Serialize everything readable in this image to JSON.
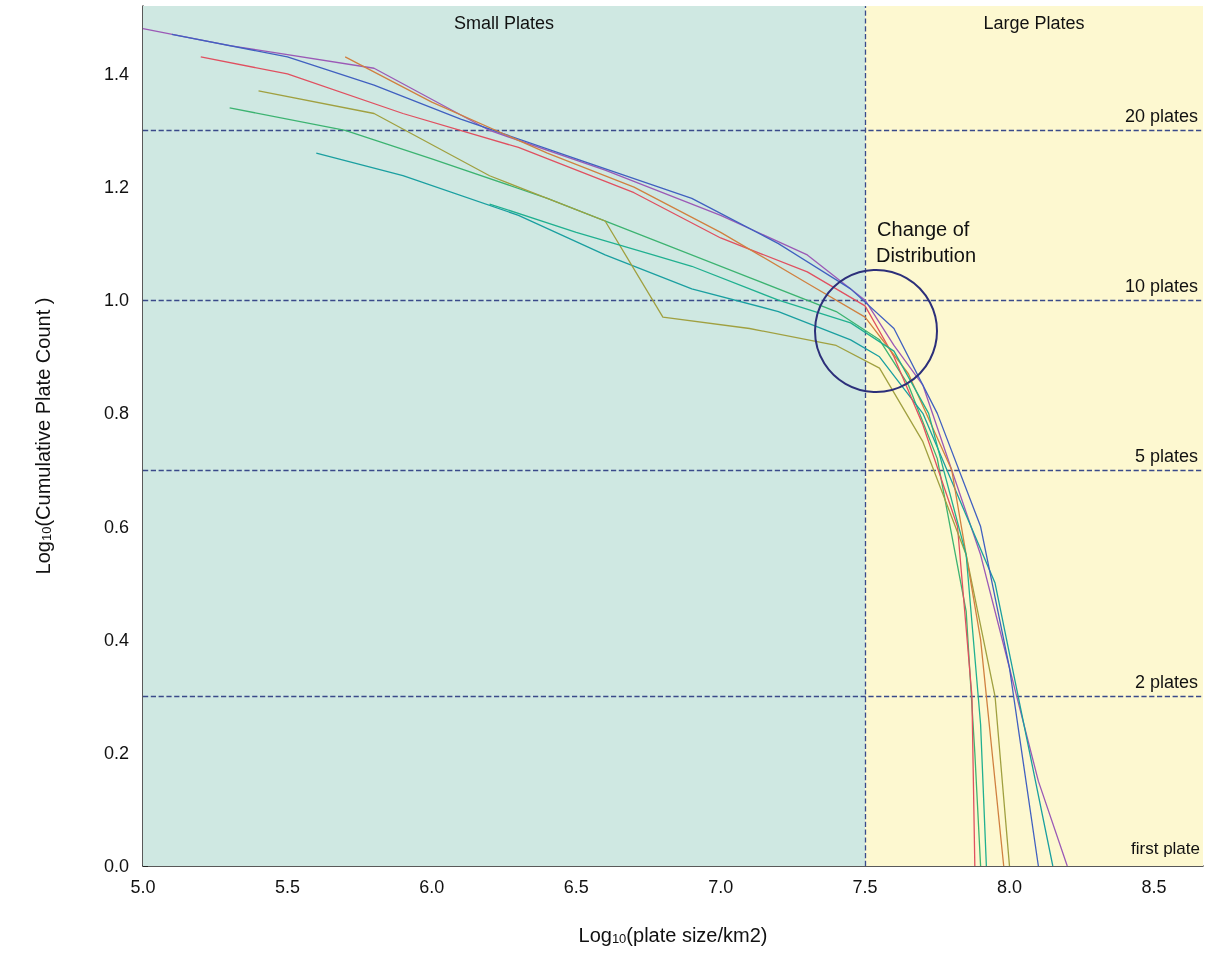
{
  "chart_data": {
    "type": "line",
    "xlabel": "Log$_{10}$(plate size/km2)",
    "ylabel": "Log$_{10}$(Cumulative Plate Count )",
    "xlim": [
      5,
      8.67
    ],
    "ylim": [
      0,
      1.52
    ],
    "xticks": [
      {
        "value": 5,
        "label": "5.0"
      },
      {
        "value": 5.5,
        "label": "5.5"
      },
      {
        "value": 6,
        "label": "6.0"
      },
      {
        "value": 6.5,
        "label": "6.5"
      },
      {
        "value": 7,
        "label": "7.0"
      },
      {
        "value": 7.5,
        "label": "7.5"
      },
      {
        "value": 8,
        "label": "8.0"
      },
      {
        "value": 8.5,
        "label": "8.5"
      }
    ],
    "yticks": [
      {
        "value": 0,
        "label": "0.0"
      },
      {
        "value": 0.2,
        "label": "0.2"
      },
      {
        "value": 0.4,
        "label": "0.4"
      },
      {
        "value": 0.6,
        "label": "0.6"
      },
      {
        "value": 0.8,
        "label": "0.8"
      },
      {
        "value": 1,
        "label": "1.0"
      },
      {
        "value": 1.2,
        "label": "1.2"
      },
      {
        "value": 1.4,
        "label": "1.4"
      }
    ],
    "grid": false,
    "line_style": "solid",
    "marker": "none",
    "series": [
      {
        "color": "#9b59b6",
        "x": [
          5.0,
          5.3,
          5.8,
          6.2,
          6.6,
          7.0,
          7.3,
          7.5,
          7.6,
          7.7,
          7.8,
          7.9,
          8.0,
          8.1,
          8.2
        ],
        "values": [
          1.48,
          1.45,
          1.41,
          1.3,
          1.23,
          1.15,
          1.08,
          1.0,
          0.92,
          0.85,
          0.7,
          0.55,
          0.35,
          0.15,
          0.0
        ]
      },
      {
        "color": "#3cb371",
        "x": [
          5.3,
          5.7,
          6.0,
          6.4,
          6.8,
          7.1,
          7.4,
          7.55,
          7.65,
          7.75,
          7.85,
          7.88,
          7.9
        ],
        "values": [
          1.34,
          1.3,
          1.25,
          1.18,
          1.1,
          1.04,
          0.98,
          0.93,
          0.85,
          0.72,
          0.45,
          0.2,
          0.0
        ]
      },
      {
        "color": "#1a9fa0",
        "x": [
          5.6,
          5.9,
          6.3,
          6.6,
          6.9,
          7.2,
          7.45,
          7.55,
          7.7,
          7.8,
          7.95,
          8.05,
          8.15
        ],
        "values": [
          1.26,
          1.22,
          1.15,
          1.08,
          1.02,
          0.98,
          0.93,
          0.9,
          0.8,
          0.68,
          0.5,
          0.25,
          0.0
        ]
      },
      {
        "color": "#e05060",
        "x": [
          5.2,
          5.5,
          5.9,
          6.3,
          6.7,
          7.0,
          7.3,
          7.5,
          7.6,
          7.7,
          7.82,
          7.87,
          7.88
        ],
        "values": [
          1.43,
          1.4,
          1.33,
          1.27,
          1.19,
          1.11,
          1.05,
          0.99,
          0.9,
          0.78,
          0.6,
          0.3,
          0.0
        ]
      },
      {
        "color": "#4060c0",
        "x": [
          5.1,
          5.5,
          5.8,
          6.1,
          6.5,
          6.9,
          7.2,
          7.45,
          7.6,
          7.75,
          7.9,
          8.0,
          8.1
        ],
        "values": [
          1.47,
          1.43,
          1.38,
          1.32,
          1.25,
          1.18,
          1.1,
          1.02,
          0.95,
          0.8,
          0.6,
          0.35,
          0.0
        ]
      },
      {
        "color": "#a0a040",
        "x": [
          5.4,
          5.8,
          6.2,
          6.6,
          6.8,
          7.1,
          7.4,
          7.55,
          7.7,
          7.85,
          7.95,
          8.0
        ],
        "values": [
          1.37,
          1.33,
          1.22,
          1.14,
          0.97,
          0.95,
          0.92,
          0.88,
          0.75,
          0.55,
          0.3,
          0.0
        ]
      },
      {
        "color": "#d08040",
        "x": [
          5.7,
          6.0,
          6.4,
          6.7,
          7.0,
          7.3,
          7.5,
          7.65,
          7.8,
          7.9,
          7.98
        ],
        "values": [
          1.43,
          1.35,
          1.26,
          1.2,
          1.12,
          1.03,
          0.97,
          0.87,
          0.7,
          0.4,
          0.0
        ]
      },
      {
        "color": "#20b090",
        "x": [
          6.2,
          6.5,
          6.9,
          7.2,
          7.45,
          7.6,
          7.72,
          7.85,
          7.9,
          7.92
        ],
        "values": [
          1.17,
          1.12,
          1.06,
          1.0,
          0.96,
          0.91,
          0.8,
          0.55,
          0.25,
          0.0
        ]
      }
    ],
    "bands": [
      {
        "axis": "x",
        "from": 5,
        "to": 7.5,
        "label": "Small Plates",
        "color": "#cfe8e2"
      },
      {
        "axis": "x",
        "from": 7.5,
        "to": 8.67,
        "label": "Large Plates",
        "color": "#fdf8d0"
      }
    ],
    "ref_lines": [
      {
        "axis": "y",
        "value": 1.301,
        "label": "20 plates",
        "color": "#3a4a8a",
        "line_style": "dashed"
      },
      {
        "axis": "y",
        "value": 1.0,
        "label": "10 plates",
        "color": "#3a4a8a",
        "line_style": "dashed"
      },
      {
        "axis": "y",
        "value": 0.699,
        "label": "5 plates",
        "color": "#3a4a8a",
        "line_style": "dashed"
      },
      {
        "axis": "y",
        "value": 0.301,
        "label": "2 plates",
        "color": "#3a4a8a",
        "line_style": "dashed"
      },
      {
        "axis": "x",
        "value": 7.5,
        "label": null,
        "color": "#3a4a8a",
        "line_style": "dashed"
      }
    ],
    "annotations": [
      "Change of Distribution",
      "first plate"
    ]
  }
}
